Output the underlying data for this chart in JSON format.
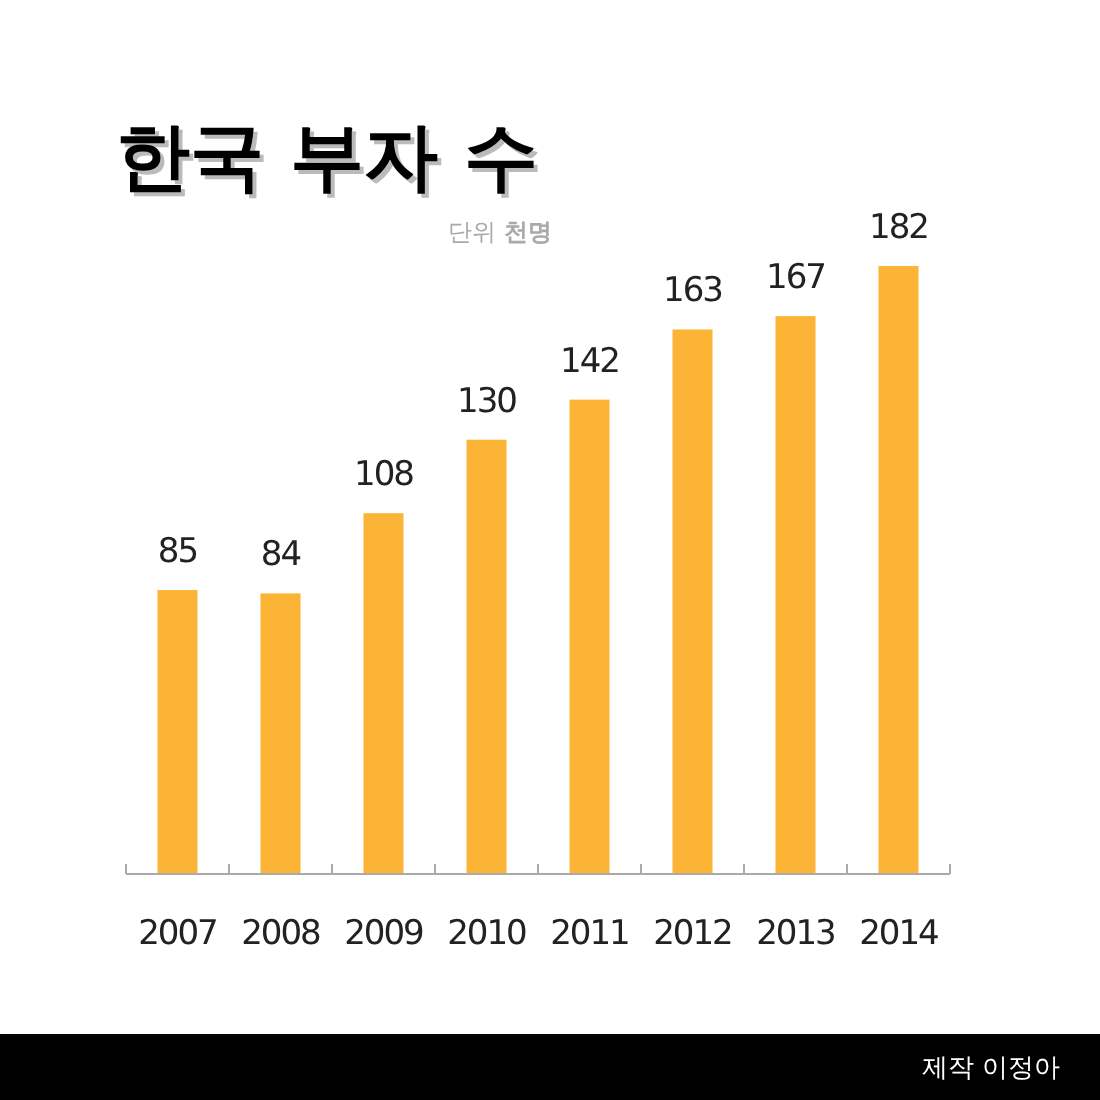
{
  "chart_data": {
    "type": "bar",
    "title": "한국 부자 수",
    "subtitle": "단위 **천명**",
    "categories": [
      "2007",
      "2008",
      "2009",
      "2010",
      "2011",
      "2012",
      "2013",
      "2014"
    ],
    "values": [
      85,
      84,
      108,
      130,
      142,
      163,
      167,
      182
    ],
    "color": "#fbb435",
    "data_labels": true,
    "annotations": [
      "제작 이정아"
    ]
  }
}
